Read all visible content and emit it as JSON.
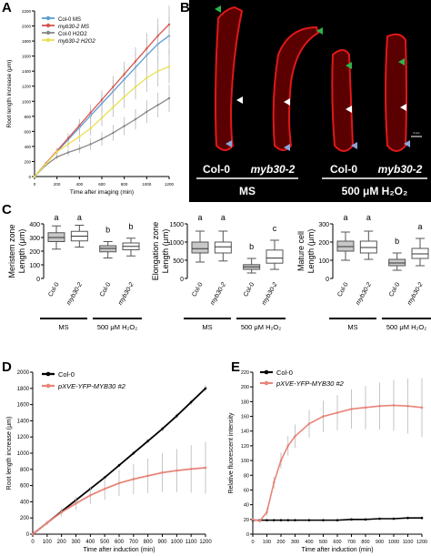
{
  "panel_letters": {
    "A": "A",
    "B": "B",
    "C": "C",
    "D": "D",
    "E": "E"
  },
  "colors": {
    "col0_ms": "#5b9bd5",
    "myb_ms": "#d9534f",
    "col0_h2o2": "#888888",
    "myb_h2o2": "#e8e050",
    "black": "#000000",
    "pxve": "#e8857a",
    "arrow_green": "#2db34a",
    "arrow_white": "#ffffff",
    "arrow_blue": "#8aa4d8",
    "root_red": "#e01818"
  },
  "panel_b": {
    "labels": [
      "Col-0",
      "myb30-2",
      "Col-0",
      "myb30-2"
    ],
    "group_labels": [
      "MS",
      "500 μM H₂O₂"
    ],
    "scale_text": "0 μm"
  },
  "panel_c": {
    "groups": [
      "MS",
      "500 μM H₂O₂"
    ],
    "x_labels": [
      "Col-0",
      "myb30-2",
      "Col-0",
      "myb30-2"
    ],
    "subplots": [
      {
        "ylabel": "Meristem zone\nLength (μm)",
        "ylim": [
          0,
          400
        ],
        "yticks": [
          "0",
          "100",
          "200",
          "300",
          "400"
        ],
        "letters": [
          "a",
          "a",
          "b",
          "b"
        ],
        "boxes": [
          {
            "min": 215,
            "q1": 270,
            "median": 300,
            "q3": 335,
            "max": 385
          },
          {
            "min": 230,
            "q1": 275,
            "median": 310,
            "q3": 345,
            "max": 390
          },
          {
            "min": 150,
            "q1": 195,
            "median": 220,
            "q3": 240,
            "max": 270
          },
          {
            "min": 165,
            "q1": 210,
            "median": 235,
            "q3": 260,
            "max": 295
          }
        ]
      },
      {
        "ylabel": "Elongation zone\nLength (μm)",
        "ylim": [
          0,
          1500
        ],
        "yticks": [
          "0",
          "500",
          "1000",
          "1500"
        ],
        "letters": [
          "a",
          "a",
          "b",
          "c"
        ],
        "boxes": [
          {
            "min": 450,
            "q1": 700,
            "median": 820,
            "q3": 1000,
            "max": 1300
          },
          {
            "min": 480,
            "q1": 700,
            "median": 870,
            "q3": 1000,
            "max": 1300
          },
          {
            "min": 150,
            "q1": 250,
            "median": 320,
            "q3": 380,
            "max": 550
          },
          {
            "min": 250,
            "q1": 420,
            "median": 560,
            "q3": 780,
            "max": 1050
          }
        ]
      },
      {
        "ylabel": "Mature cell\nLength (μm)",
        "ylim": [
          0,
          300
        ],
        "yticks": [
          "0",
          "100",
          "200",
          "300"
        ],
        "letters": [
          "a",
          "a",
          "b",
          "a"
        ],
        "boxes": [
          {
            "min": 100,
            "q1": 150,
            "median": 175,
            "q3": 205,
            "max": 255
          },
          {
            "min": 105,
            "q1": 140,
            "median": 170,
            "q3": 205,
            "max": 260
          },
          {
            "min": 45,
            "q1": 70,
            "median": 85,
            "q3": 105,
            "max": 140
          },
          {
            "min": 70,
            "q1": 110,
            "median": 135,
            "q3": 165,
            "max": 220
          }
        ]
      }
    ]
  },
  "chart_data": [
    {
      "type": "line",
      "panel": "A",
      "xlabel": "Time after imaging (min)",
      "ylabel": "Root length increase (μm)",
      "xlim": [
        0,
        1200
      ],
      "ylim": [
        0,
        2200
      ],
      "xticks": [
        0,
        200,
        400,
        600,
        800,
        1000,
        1200
      ],
      "yticks": [
        0,
        200,
        400,
        600,
        800,
        1000,
        1200,
        1400,
        1600,
        1800,
        2000,
        2200
      ],
      "legend_position": "top-left",
      "x": [
        0,
        100,
        200,
        300,
        400,
        500,
        600,
        700,
        800,
        900,
        1000,
        1100,
        1200
      ],
      "series": [
        {
          "name": "Col-0 MS",
          "values": [
            0,
            170,
            330,
            490,
            650,
            810,
            970,
            1130,
            1290,
            1450,
            1610,
            1760,
            1870
          ]
        },
        {
          "name": "myb30-2 MS",
          "values": [
            0,
            175,
            340,
            510,
            680,
            850,
            1020,
            1190,
            1360,
            1530,
            1700,
            1870,
            2020
          ]
        },
        {
          "name": "Col-0 H2O2",
          "values": [
            0,
            150,
            260,
            320,
            370,
            430,
            500,
            580,
            670,
            760,
            860,
            950,
            1040
          ]
        },
        {
          "name": "myb30-2 H2O2",
          "values": [
            0,
            165,
            330,
            430,
            530,
            640,
            780,
            920,
            1060,
            1190,
            1310,
            1400,
            1460
          ]
        }
      ]
    },
    {
      "type": "line",
      "panel": "D",
      "xlabel": "Time after induction (min)",
      "ylabel": "Root length increase (μm)",
      "xlim": [
        0,
        1200
      ],
      "ylim": [
        0,
        2000
      ],
      "xticks": [
        0,
        100,
        200,
        300,
        400,
        500,
        600,
        700,
        800,
        900,
        1000,
        1100,
        1200
      ],
      "yticks": [
        0,
        200,
        400,
        600,
        800,
        1000,
        1200,
        1400,
        1600,
        1800,
        2000
      ],
      "legend_position": "top-left",
      "x": [
        0,
        100,
        200,
        300,
        400,
        500,
        600,
        700,
        800,
        900,
        1000,
        1100,
        1200
      ],
      "series": [
        {
          "name": "Col-0",
          "values": [
            0,
            140,
            280,
            420,
            560,
            700,
            850,
            1000,
            1150,
            1300,
            1460,
            1630,
            1800
          ]
        },
        {
          "name": "pXVE-YFP-MYB30 #2",
          "values": [
            0,
            140,
            270,
            380,
            480,
            560,
            630,
            680,
            720,
            760,
            785,
            805,
            820
          ]
        }
      ]
    },
    {
      "type": "line",
      "panel": "E",
      "xlabel": "Time after induction (min)",
      "ylabel": "Relative fluorescent intensity",
      "xlim": [
        0,
        1200
      ],
      "ylim": [
        0,
        220
      ],
      "xticks": [
        0,
        100,
        200,
        300,
        400,
        500,
        600,
        700,
        800,
        900,
        1000,
        1100,
        1200
      ],
      "yticks": [
        0,
        20,
        40,
        60,
        80,
        100,
        120,
        140,
        160,
        180,
        200,
        220
      ],
      "legend_position": "top-left",
      "x": [
        0,
        50,
        100,
        150,
        200,
        250,
        300,
        400,
        500,
        600,
        700,
        800,
        900,
        1000,
        1100,
        1200
      ],
      "series": [
        {
          "name": "Col-0",
          "values": [
            19,
            19,
            19,
            19,
            19,
            19,
            19,
            19,
            19,
            19,
            20,
            20,
            21,
            21,
            22,
            22
          ]
        },
        {
          "name": "pXVE-YFP-MYB30 #2",
          "values": [
            20,
            18,
            30,
            70,
            100,
            120,
            133,
            150,
            160,
            165,
            170,
            172,
            174,
            175,
            174,
            172
          ]
        }
      ]
    }
  ]
}
